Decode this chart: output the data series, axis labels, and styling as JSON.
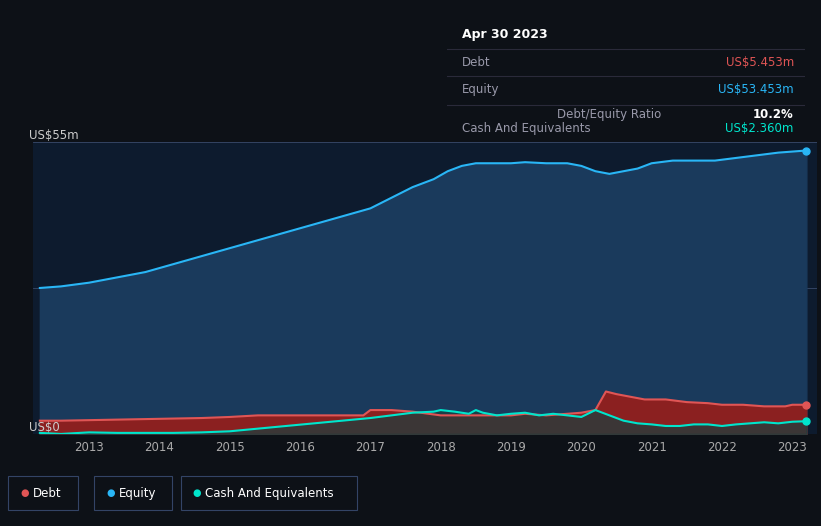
{
  "bg_color": "#0d1117",
  "plot_bg_color": "#0d1b2e",
  "title_box": {
    "date": "Apr 30 2023",
    "debt_label": "Debt",
    "debt_value": "US$5.453m",
    "equity_label": "Equity",
    "equity_value": "US$53.453m",
    "ratio_value": "10.2%",
    "ratio_label": " Debt/Equity Ratio",
    "cash_label": "Cash And Equivalents",
    "cash_value": "US$2.360m"
  },
  "ylabel_top": "US$55m",
  "ylabel_bottom": "US$0",
  "colors": {
    "debt": "#e05555",
    "equity": "#29b6f6",
    "cash": "#00e5cc",
    "debt_fill": "#8b2020",
    "equity_fill": "#1a3a5c",
    "cash_fill": "#1a4040"
  },
  "x_ticks": [
    "2013",
    "2014",
    "2015",
    "2016",
    "2017",
    "2018",
    "2019",
    "2020",
    "2021",
    "2022",
    "2023"
  ],
  "ylim": [
    0,
    55
  ],
  "xlim": [
    2012.2,
    2023.35
  ],
  "equity_data": {
    "x": [
      2012.3,
      2012.6,
      2013.0,
      2013.4,
      2013.8,
      2014.2,
      2014.6,
      2015.0,
      2015.4,
      2015.8,
      2016.2,
      2016.6,
      2017.0,
      2017.3,
      2017.6,
      2017.9,
      2018.1,
      2018.3,
      2018.5,
      2018.7,
      2019.0,
      2019.2,
      2019.5,
      2019.8,
      2020.0,
      2020.2,
      2020.4,
      2020.6,
      2020.8,
      2021.0,
      2021.3,
      2021.6,
      2021.9,
      2022.2,
      2022.5,
      2022.8,
      2023.0,
      2023.2
    ],
    "y": [
      27.5,
      27.8,
      28.5,
      29.5,
      30.5,
      32.0,
      33.5,
      35.0,
      36.5,
      38.0,
      39.5,
      41.0,
      42.5,
      44.5,
      46.5,
      48.0,
      49.5,
      50.5,
      51.0,
      51.0,
      51.0,
      51.2,
      51.0,
      51.0,
      50.5,
      49.5,
      49.0,
      49.5,
      50.0,
      51.0,
      51.5,
      51.5,
      51.5,
      52.0,
      52.5,
      53.0,
      53.2,
      53.4
    ]
  },
  "debt_data": {
    "x": [
      2012.3,
      2012.6,
      2013.0,
      2013.4,
      2013.8,
      2014.2,
      2014.6,
      2015.0,
      2015.4,
      2015.8,
      2016.2,
      2016.6,
      2016.9,
      2017.0,
      2017.3,
      2017.6,
      2018.0,
      2018.3,
      2018.5,
      2018.7,
      2019.0,
      2019.2,
      2019.5,
      2019.8,
      2020.0,
      2020.2,
      2020.35,
      2020.5,
      2020.7,
      2020.9,
      2021.2,
      2021.5,
      2021.8,
      2022.0,
      2022.3,
      2022.6,
      2022.9,
      2023.0,
      2023.2
    ],
    "y": [
      2.5,
      2.5,
      2.6,
      2.7,
      2.8,
      2.9,
      3.0,
      3.2,
      3.5,
      3.5,
      3.5,
      3.5,
      3.5,
      4.5,
      4.5,
      4.2,
      3.5,
      3.5,
      3.5,
      3.5,
      3.5,
      3.8,
      3.5,
      3.8,
      4.0,
      4.5,
      8.0,
      7.5,
      7.0,
      6.5,
      6.5,
      6.0,
      5.8,
      5.5,
      5.5,
      5.2,
      5.2,
      5.5,
      5.5
    ]
  },
  "cash_data": {
    "x": [
      2012.3,
      2012.6,
      2013.0,
      2013.4,
      2013.8,
      2014.2,
      2014.6,
      2015.0,
      2015.4,
      2015.8,
      2016.2,
      2016.6,
      2017.0,
      2017.3,
      2017.6,
      2017.9,
      2018.0,
      2018.2,
      2018.4,
      2018.5,
      2018.6,
      2018.8,
      2019.0,
      2019.2,
      2019.4,
      2019.6,
      2019.8,
      2020.0,
      2020.2,
      2020.4,
      2020.6,
      2020.8,
      2021.0,
      2021.2,
      2021.4,
      2021.6,
      2021.8,
      2022.0,
      2022.2,
      2022.4,
      2022.6,
      2022.8,
      2023.0,
      2023.2
    ],
    "y": [
      0.2,
      0.0,
      0.3,
      0.2,
      0.2,
      0.2,
      0.3,
      0.5,
      1.0,
      1.5,
      2.0,
      2.5,
      3.0,
      3.5,
      4.0,
      4.2,
      4.5,
      4.2,
      3.8,
      4.5,
      4.0,
      3.5,
      3.8,
      4.0,
      3.5,
      3.8,
      3.5,
      3.2,
      4.5,
      3.5,
      2.5,
      2.0,
      1.8,
      1.5,
      1.5,
      1.8,
      1.8,
      1.5,
      1.8,
      2.0,
      2.2,
      2.0,
      2.3,
      2.4
    ]
  },
  "legend": [
    {
      "label": "Debt",
      "color": "#e05555"
    },
    {
      "label": "Equity",
      "color": "#29b6f6"
    },
    {
      "label": "Cash And Equivalents",
      "color": "#00e5cc"
    }
  ]
}
